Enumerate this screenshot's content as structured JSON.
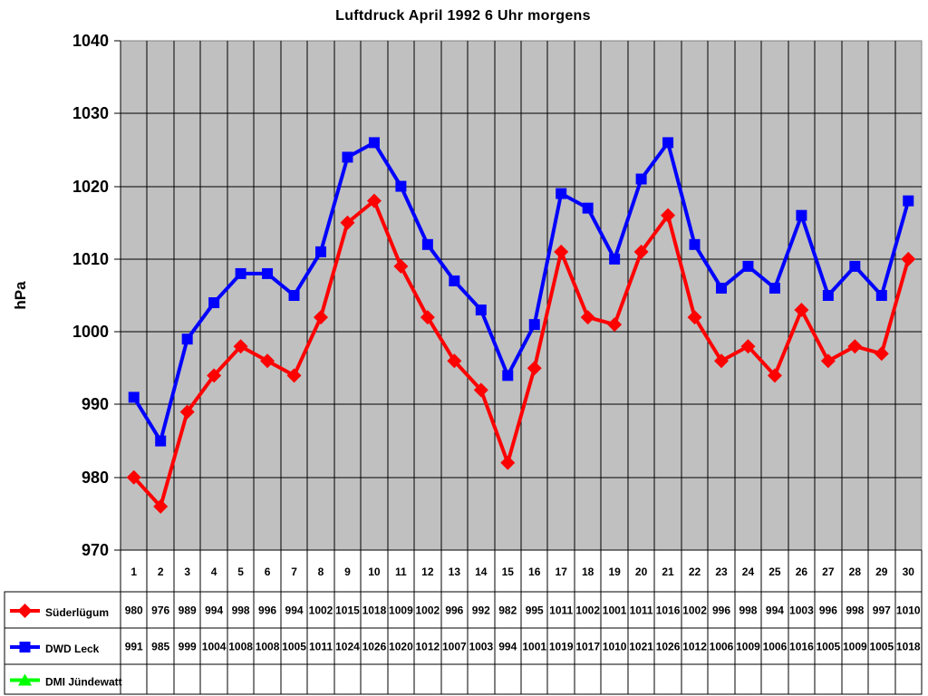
{
  "chart_data": {
    "type": "line",
    "title": "Luftdruck April 1992 6 Uhr morgens",
    "xlabel": "",
    "ylabel": "hPa",
    "ylim": [
      970,
      1040
    ],
    "ytick_step": 10,
    "grid": true,
    "plot_bg_color": "#c0c0c0",
    "plot_border_color": "#808080",
    "gridline_color": "#000000",
    "legend_position": "bottom-table",
    "categories": [
      "1",
      "2",
      "3",
      "4",
      "5",
      "6",
      "7",
      "8",
      "9",
      "10",
      "11",
      "12",
      "13",
      "14",
      "15",
      "16",
      "17",
      "18",
      "19",
      "20",
      "21",
      "22",
      "23",
      "24",
      "25",
      "26",
      "27",
      "28",
      "29",
      "30"
    ],
    "series": [
      {
        "name": "Süderlügum",
        "color": "#ff0000",
        "marker": "diamond",
        "values": [
          980,
          976,
          989,
          994,
          998,
          996,
          994,
          1002,
          1015,
          1018,
          1009,
          1002,
          996,
          992,
          982,
          995,
          1011,
          1002,
          1001,
          1011,
          1016,
          1002,
          996,
          998,
          994,
          1003,
          996,
          998,
          997,
          1010
        ]
      },
      {
        "name": "DWD Leck",
        "color": "#0000ff",
        "marker": "square",
        "values": [
          991,
          985,
          999,
          1004,
          1008,
          1008,
          1005,
          1011,
          1024,
          1026,
          1020,
          1012,
          1007,
          1003,
          994,
          1001,
          1019,
          1017,
          1010,
          1021,
          1026,
          1012,
          1006,
          1009,
          1006,
          1016,
          1005,
          1009,
          1005,
          1018
        ]
      },
      {
        "name": "DMI Jündewatt",
        "color": "#00ff00",
        "marker": "triangle",
        "values": []
      }
    ]
  }
}
